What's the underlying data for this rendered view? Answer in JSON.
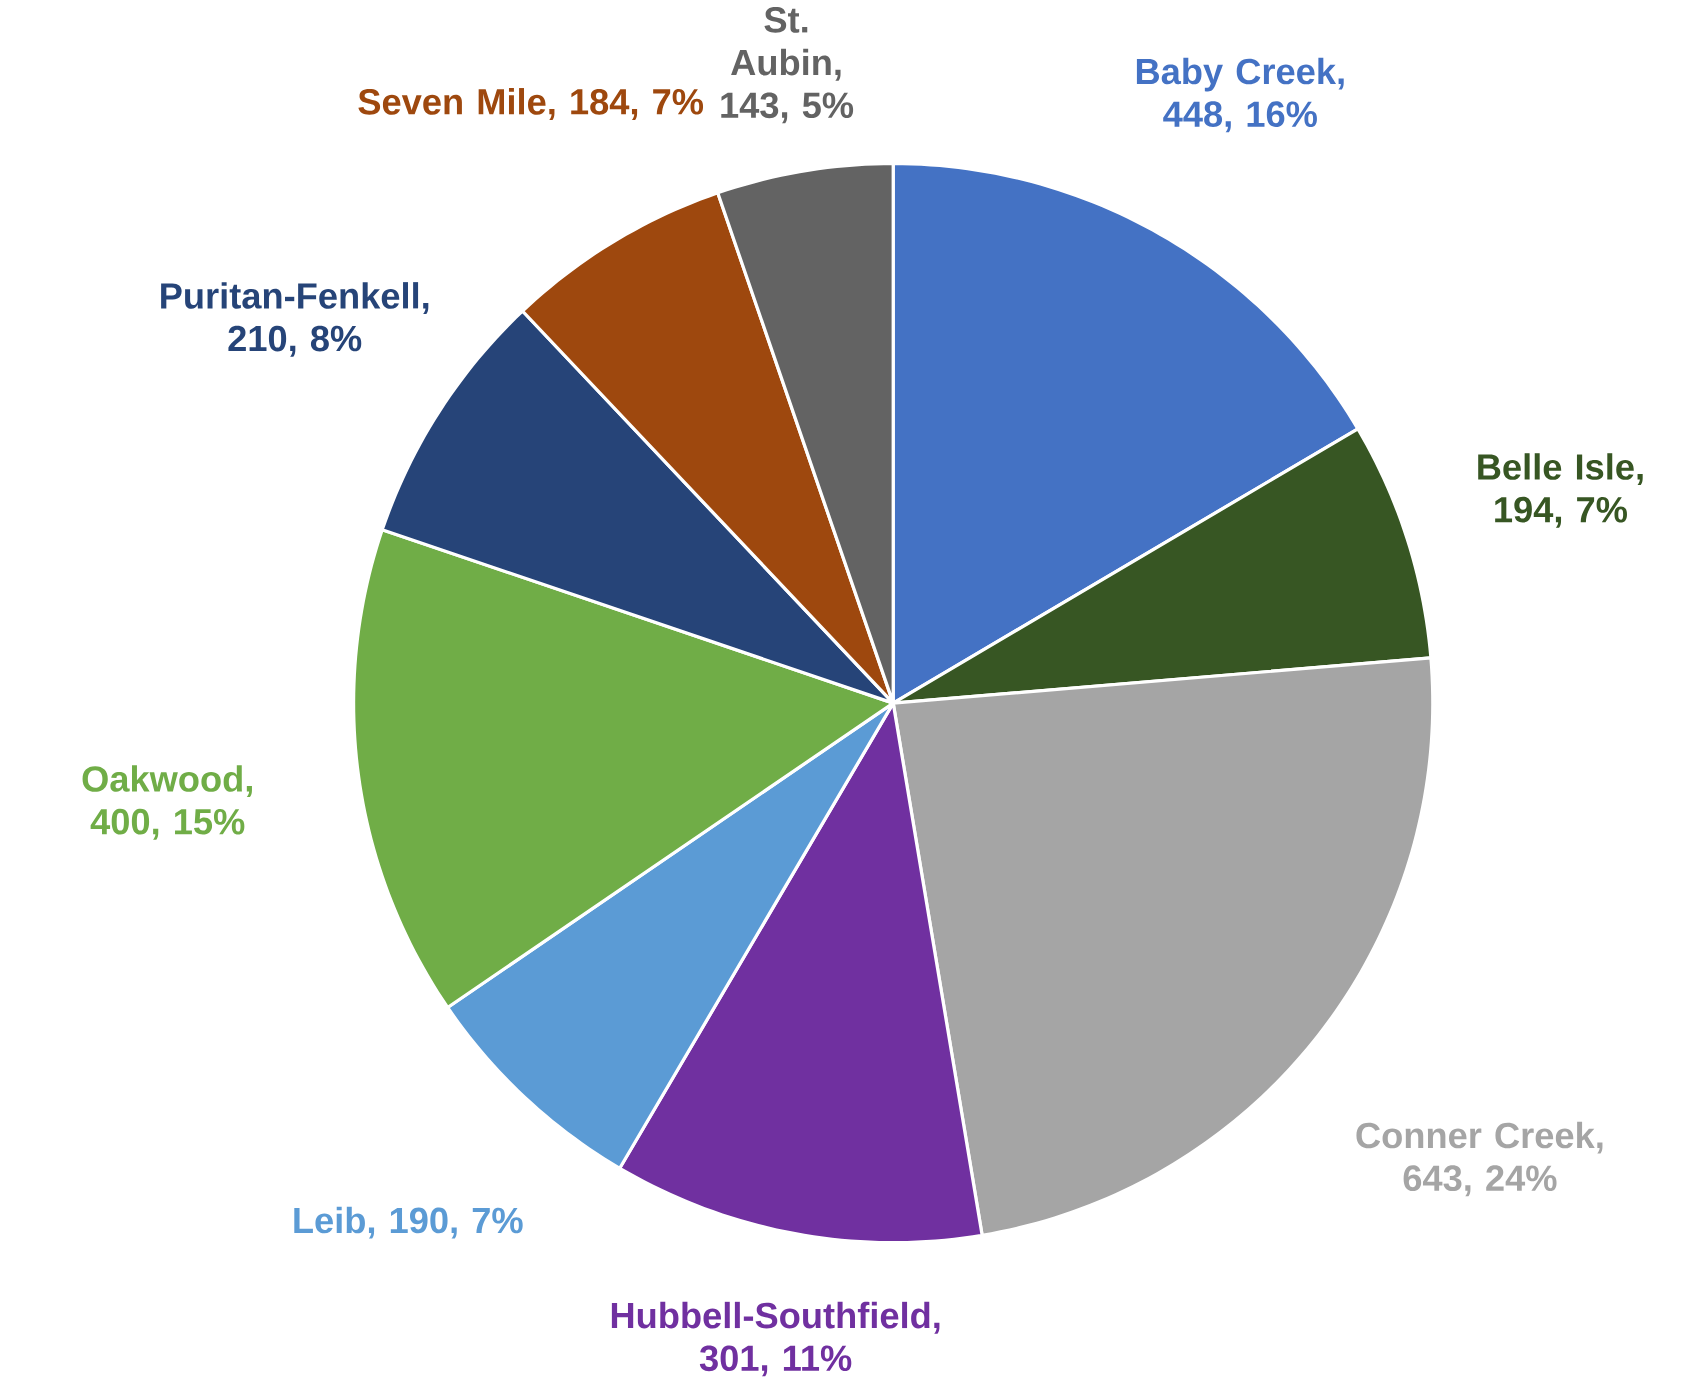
{
  "chart_data": {
    "type": "pie",
    "categories": [
      "Baby Creek",
      "Belle Isle",
      "Conner Creek",
      "Hubbell-Southfield",
      "Leib",
      "Oakwood",
      "Puritan-Fenkell",
      "Seven Mile",
      "St. Aubin"
    ],
    "values": [
      448,
      194,
      643,
      301,
      190,
      400,
      210,
      184,
      143
    ],
    "value_labels": [
      ", 448, 16%",
      ", 194, 7%",
      ", 643, 24%",
      ", 301, 11%",
      ", 190, 7%",
      ", 400, 15%",
      ", 210, 8%",
      ", 184, 7%",
      ", 143, 5%"
    ],
    "colors": [
      "#4472c4",
      "#375623",
      "#a5a5a5",
      "#7030a0",
      "#5b9bd5",
      "#70ad47",
      "#264478",
      "#9e480e",
      "#636363"
    ]
  }
}
